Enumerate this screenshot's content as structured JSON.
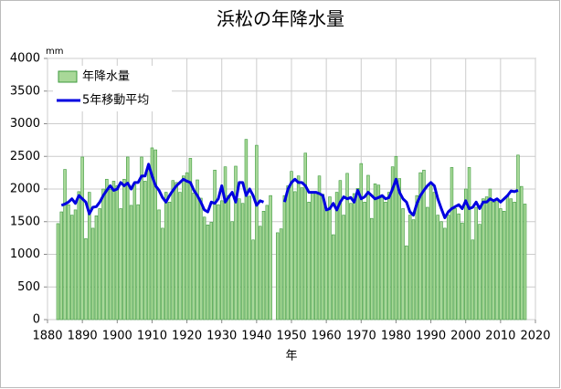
{
  "chart_data": {
    "type": "bar-line",
    "title": "浜松の年降水量",
    "y_unit": "mm",
    "xlabel": "年",
    "x": [
      1883,
      1884,
      1885,
      1886,
      1887,
      1888,
      1889,
      1890,
      1891,
      1892,
      1893,
      1894,
      1895,
      1896,
      1897,
      1898,
      1899,
      1900,
      1901,
      1902,
      1903,
      1904,
      1905,
      1906,
      1907,
      1908,
      1909,
      1910,
      1911,
      1912,
      1913,
      1914,
      1915,
      1916,
      1917,
      1918,
      1919,
      1920,
      1921,
      1922,
      1923,
      1924,
      1925,
      1926,
      1927,
      1928,
      1929,
      1930,
      1931,
      1932,
      1933,
      1934,
      1935,
      1936,
      1937,
      1938,
      1939,
      1940,
      1941,
      1942,
      1943,
      1944,
      1945,
      1946,
      1947,
      1948,
      1949,
      1950,
      1951,
      1952,
      1953,
      1954,
      1955,
      1956,
      1957,
      1958,
      1959,
      1960,
      1961,
      1962,
      1963,
      1964,
      1965,
      1966,
      1967,
      1968,
      1969,
      1970,
      1971,
      1972,
      1973,
      1974,
      1975,
      1976,
      1977,
      1978,
      1979,
      1980,
      1981,
      1982,
      1983,
      1984,
      1985,
      1986,
      1987,
      1988,
      1989,
      1990,
      1991,
      1992,
      1993,
      1994,
      1995,
      1996,
      1997,
      1998,
      1999,
      2000,
      2001,
      2002,
      2003,
      2004,
      2005,
      2006,
      2007,
      2008,
      2009,
      2010,
      2011,
      2012,
      2013,
      2014,
      2015,
      2016,
      2017
    ],
    "series": [
      {
        "name": "年降水量",
        "kind": "bar",
        "color": "#a8d898",
        "edge": "#3c9a3c",
        "values": [
          1470,
          1650,
          2300,
          1760,
          1600,
          1680,
          1960,
          2490,
          1240,
          1950,
          1400,
          1590,
          1700,
          2000,
          2150,
          1990,
          2120,
          2050,
          1700,
          2150,
          2490,
          1750,
          2070,
          1760,
          2490,
          2120,
          2300,
          2630,
          2600,
          1680,
          1400,
          1950,
          1800,
          2130,
          2100,
          1950,
          2200,
          2250,
          2470,
          1940,
          2140,
          1860,
          1570,
          1450,
          1490,
          2290,
          1760,
          1820,
          2340,
          1900,
          1500,
          2350,
          1850,
          1780,
          2760,
          1890,
          1220,
          2670,
          1430,
          1660,
          1750,
          1900,
          null,
          1330,
          1390,
          1900,
          2050,
          2270,
          1960,
          2200,
          2020,
          2550,
          1800,
          1960,
          1950,
          2200,
          1920,
          1700,
          1880,
          1300,
          1950,
          2130,
          1600,
          2240,
          1780,
          1930,
          2010,
          2390,
          1800,
          2210,
          1550,
          2080,
          2060,
          1870,
          1800,
          1950,
          2340,
          2500,
          2160,
          1700,
          1130,
          1600,
          1530,
          1900,
          2250,
          2290,
          1720,
          2100,
          1950,
          1600,
          1500,
          1400,
          1600,
          2330,
          1700,
          1620,
          1480,
          2000,
          2330,
          1220,
          1720,
          1460,
          1850,
          1880,
          2000,
          1800,
          1850,
          1700,
          1660,
          1900,
          1850,
          1800,
          2520,
          2040,
          1770
        ]
      },
      {
        "name": "5年移動平均",
        "kind": "line",
        "color": "#0000e0",
        "values": [
          null,
          1750,
          1770,
          1800,
          1850,
          1780,
          1900,
          1850,
          1800,
          1620,
          1720,
          1730,
          1800,
          1900,
          1980,
          2050,
          1980,
          2000,
          2100,
          2050,
          2090,
          2000,
          2100,
          2100,
          2200,
          2200,
          2380,
          2200,
          2050,
          1980,
          1870,
          1800,
          1900,
          1980,
          2050,
          2100,
          2150,
          2120,
          2100,
          1980,
          1900,
          1800,
          1680,
          1650,
          1800,
          1780,
          1850,
          2050,
          1800,
          1880,
          1950,
          1800,
          2100,
          2100,
          1900,
          2000,
          1900,
          1750,
          1820,
          1800,
          null,
          null,
          null,
          null,
          null,
          1800,
          2000,
          2100,
          2150,
          2100,
          2100,
          2050,
          1950,
          1950,
          1950,
          1930,
          1900,
          1680,
          1700,
          1780,
          1680,
          1800,
          1880,
          1850,
          1870,
          1800,
          1980,
          1850,
          1880,
          1950,
          1900,
          1850,
          1870,
          1900,
          1850,
          1870,
          2000,
          2150,
          1950,
          1850,
          1800,
          1650,
          1600,
          1780,
          1900,
          1980,
          2050,
          2100,
          2050,
          1850,
          1700,
          1560,
          1650,
          1700,
          1730,
          1760,
          1700,
          1820,
          1700,
          1720,
          1800,
          1700,
          1800,
          1800,
          1850,
          1820,
          1850,
          1800,
          1850,
          1900,
          1970,
          1960,
          1980,
          null,
          null
        ]
      }
    ],
    "xlim": [
      1880,
      2020
    ],
    "xticks": [
      1880,
      1890,
      1900,
      1910,
      1920,
      1930,
      1940,
      1950,
      1960,
      1970,
      1980,
      1990,
      2000,
      2010,
      2020
    ],
    "ylim": [
      0,
      4000
    ],
    "yticks": [
      0,
      500,
      1000,
      1500,
      2000,
      2500,
      3000,
      3500,
      4000
    ],
    "grid": true,
    "legend": "top-left"
  }
}
